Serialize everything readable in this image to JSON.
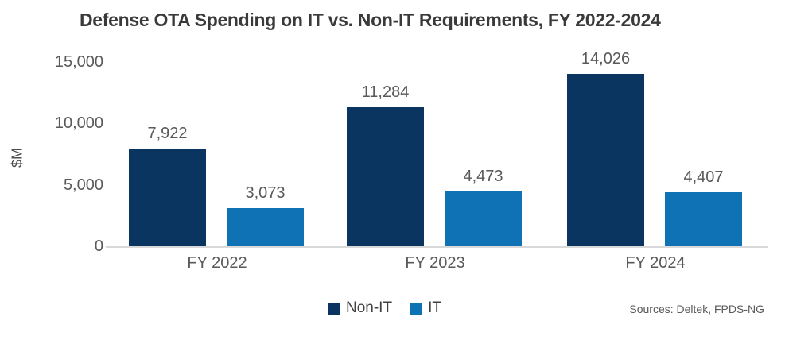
{
  "chart": {
    "title": "Defense OTA Spending on IT vs. Non-IT Requirements, FY 2022-2024",
    "y_axis_label": "$M",
    "sources": "Sources: Deltek, FPDS-NG"
  },
  "chart_data": {
    "type": "bar",
    "title": "Defense OTA Spending on IT vs. Non-IT Requirements, FY 2022-2024",
    "categories": [
      "FY 2022",
      "FY 2023",
      "FY 2024"
    ],
    "series": [
      {
        "name": "Non-IT",
        "color": "#0b3561",
        "values": [
          7922,
          11284,
          14026
        ],
        "labels": [
          "7,922",
          "11,284",
          "14,026"
        ]
      },
      {
        "name": "IT",
        "color": "#0e72b5",
        "values": [
          3073,
          4473,
          4407
        ],
        "labels": [
          "3,073",
          "4,473",
          "4,407"
        ]
      }
    ],
    "xlabel": "",
    "ylabel": "$M",
    "ylim": [
      0,
      15000
    ],
    "yticks": [
      0,
      5000,
      10000,
      15000
    ],
    "ytick_labels": [
      "0",
      "5,000",
      "10,000",
      "15,000"
    ],
    "grid": false,
    "legend_position": "bottom-center",
    "sources_note": "Sources: Deltek, FPDS-NG"
  }
}
